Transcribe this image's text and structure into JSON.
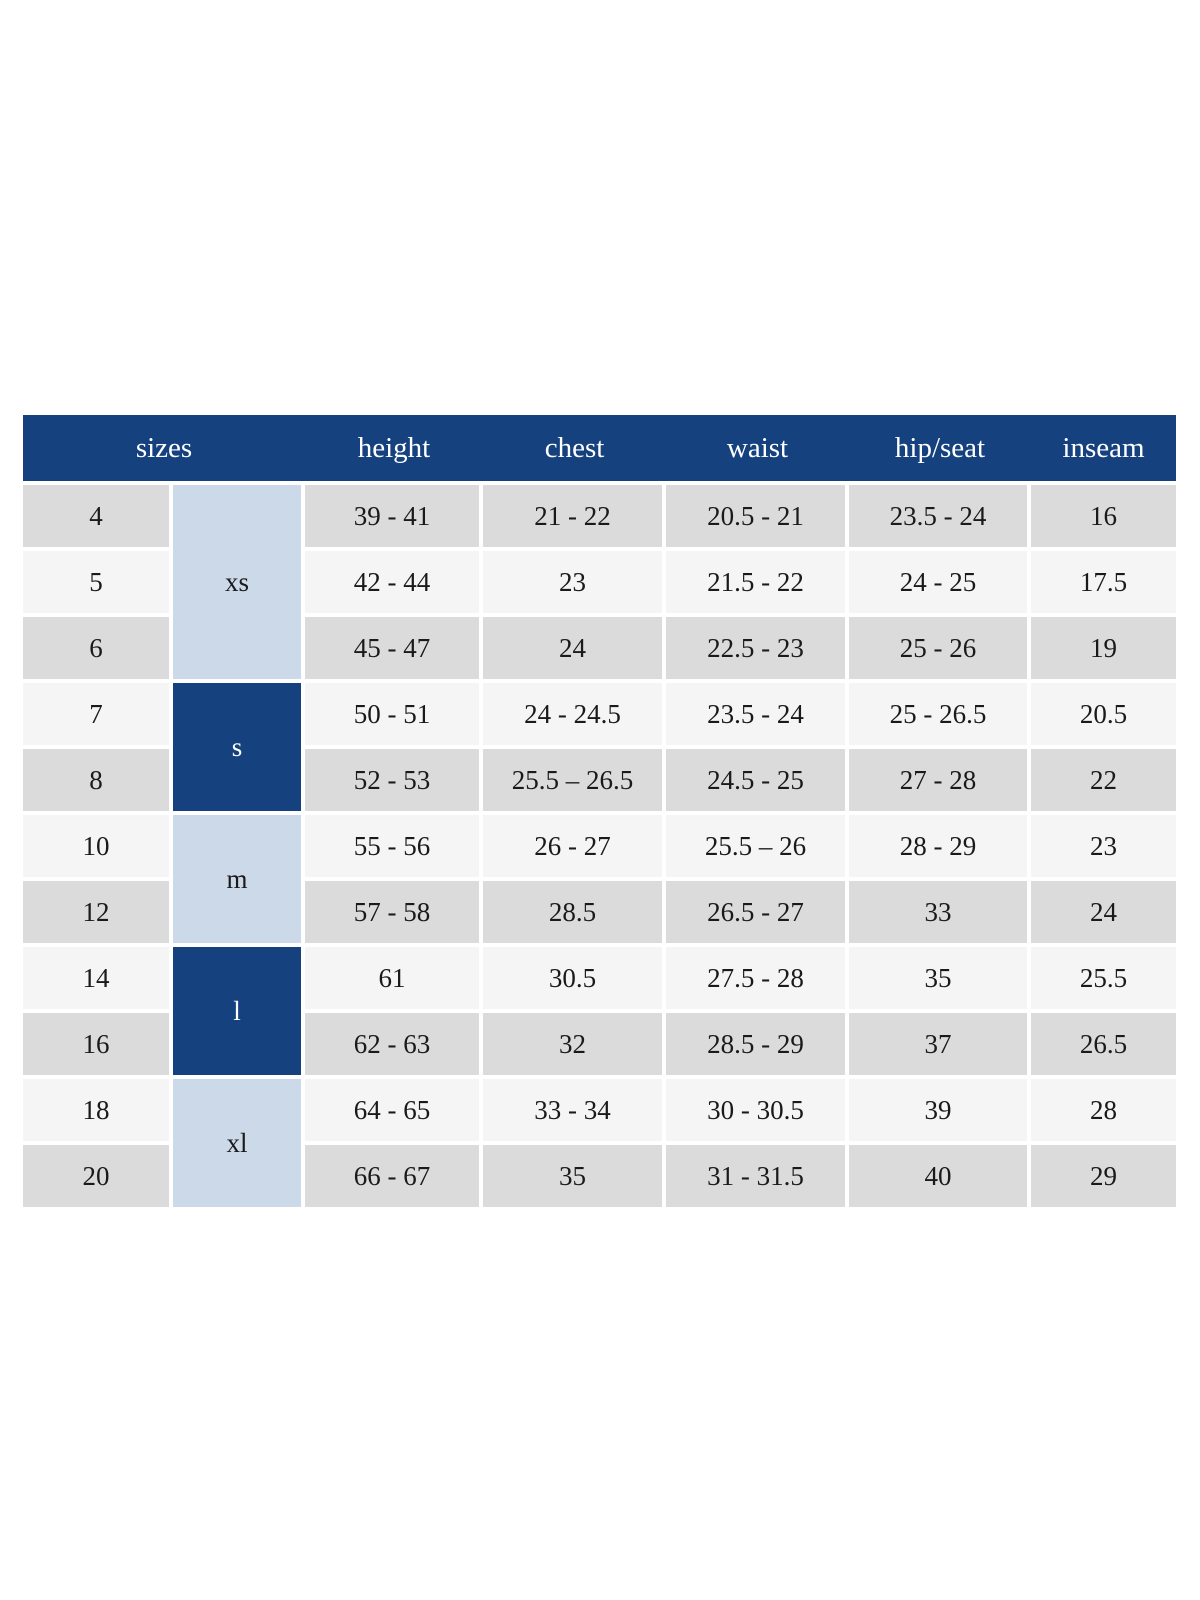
{
  "colors": {
    "navy": "#15417e",
    "light_blue": "#ccd9e9",
    "row_gray": "#dbdbdb",
    "row_light": "#f5f5f5",
    "header_text": "#ffffff",
    "data_text": "#1a1a1a"
  },
  "size_chart": {
    "headers": {
      "sizes": "sizes",
      "height": "height",
      "chest": "chest",
      "waist": "waist",
      "hip_seat": "hip/seat",
      "inseam": "inseam"
    },
    "groups": [
      {
        "label": "xs",
        "tone": "light",
        "rows": [
          {
            "size": "4",
            "height": "39 - 41",
            "chest": "21 - 22",
            "waist": "20.5 - 21",
            "hip_seat": "23.5 - 24",
            "inseam": "16"
          },
          {
            "size": "5",
            "height": "42 - 44",
            "chest": "23",
            "waist": "21.5 - 22",
            "hip_seat": "24 - 25",
            "inseam": "17.5"
          },
          {
            "size": "6",
            "height": "45 - 47",
            "chest": "24",
            "waist": "22.5 - 23",
            "hip_seat": "25 - 26",
            "inseam": "19"
          }
        ]
      },
      {
        "label": "s",
        "tone": "dark",
        "rows": [
          {
            "size": "7",
            "height": "50 - 51",
            "chest": "24 - 24.5",
            "waist": "23.5 - 24",
            "hip_seat": "25 - 26.5",
            "inseam": "20.5"
          },
          {
            "size": "8",
            "height": "52 - 53",
            "chest": "25.5 – 26.5",
            "waist": "24.5 - 25",
            "hip_seat": "27 - 28",
            "inseam": "22"
          }
        ]
      },
      {
        "label": "m",
        "tone": "light",
        "rows": [
          {
            "size": "10",
            "height": "55 - 56",
            "chest": "26 - 27",
            "waist": "25.5 – 26",
            "hip_seat": "28 - 29",
            "inseam": "23"
          },
          {
            "size": "12",
            "height": "57 - 58",
            "chest": "28.5",
            "waist": "26.5 - 27",
            "hip_seat": "33",
            "inseam": "24"
          }
        ]
      },
      {
        "label": "l",
        "tone": "dark",
        "rows": [
          {
            "size": "14",
            "height": "61",
            "chest": "30.5",
            "waist": "27.5 - 28",
            "hip_seat": "35",
            "inseam": "25.5"
          },
          {
            "size": "16",
            "height": "62 - 63",
            "chest": "32",
            "waist": "28.5 - 29",
            "hip_seat": "37",
            "inseam": "26.5"
          }
        ]
      },
      {
        "label": "xl",
        "tone": "light",
        "rows": [
          {
            "size": "18",
            "height": "64 - 65",
            "chest": "33 - 34",
            "waist": "30 - 30.5",
            "hip_seat": "39",
            "inseam": "28"
          },
          {
            "size": "20",
            "height": "66 - 67",
            "chest": "35",
            "waist": "31 - 31.5",
            "hip_seat": "40",
            "inseam": "29"
          }
        ]
      }
    ]
  }
}
